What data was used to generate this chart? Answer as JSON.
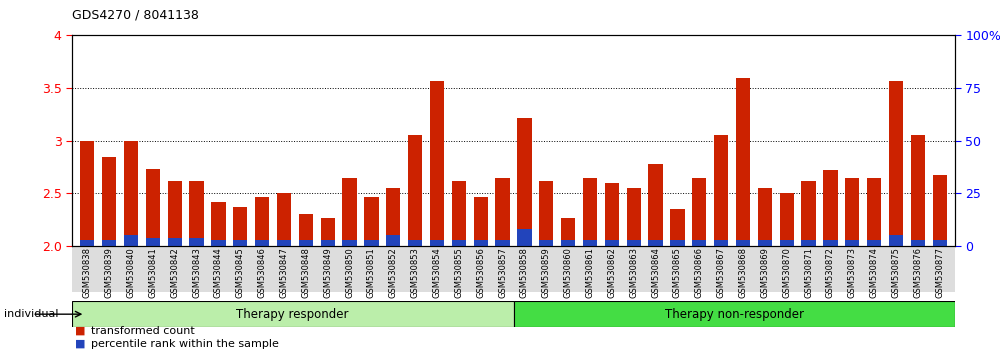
{
  "title": "GDS4270 / 8041138",
  "samples": [
    "GSM530838",
    "GSM530839",
    "GSM530840",
    "GSM530841",
    "GSM530842",
    "GSM530843",
    "GSM530844",
    "GSM530845",
    "GSM530846",
    "GSM530847",
    "GSM530848",
    "GSM530849",
    "GSM530850",
    "GSM530851",
    "GSM530852",
    "GSM530853",
    "GSM530854",
    "GSM530855",
    "GSM530856",
    "GSM530857",
    "GSM530858",
    "GSM530859",
    "GSM530860",
    "GSM530861",
    "GSM530862",
    "GSM530863",
    "GSM530864",
    "GSM530865",
    "GSM530866",
    "GSM530867",
    "GSM530868",
    "GSM530869",
    "GSM530870",
    "GSM530871",
    "GSM530872",
    "GSM530873",
    "GSM530874",
    "GSM530875",
    "GSM530876",
    "GSM530877"
  ],
  "red_values": [
    3.0,
    2.85,
    3.0,
    2.73,
    2.62,
    2.62,
    2.42,
    2.37,
    2.47,
    2.5,
    2.3,
    2.27,
    2.65,
    2.47,
    2.55,
    3.05,
    3.57,
    2.62,
    2.47,
    2.65,
    3.22,
    2.62,
    2.27,
    2.65,
    2.6,
    2.55,
    2.78,
    2.35,
    2.65,
    3.05,
    3.6,
    2.55,
    2.5,
    2.62,
    2.72,
    2.65,
    2.65,
    3.57,
    3.05,
    2.67
  ],
  "blue_values": [
    3,
    3,
    5,
    4,
    4,
    4,
    3,
    3,
    3,
    3,
    3,
    3,
    3,
    3,
    5,
    3,
    3,
    3,
    3,
    3,
    8,
    3,
    3,
    3,
    3,
    3,
    3,
    3,
    3,
    3,
    3,
    3,
    3,
    3,
    3,
    3,
    3,
    5,
    3,
    3
  ],
  "group1_label": "Therapy responder",
  "group2_label": "Therapy non-responder",
  "group1_count": 20,
  "group2_count": 20,
  "individual_label": "individual",
  "legend_red": "transformed count",
  "legend_blue": "percentile rank within the sample",
  "ylim_left": [
    2.0,
    4.0
  ],
  "ylim_right": [
    0,
    100
  ],
  "yticks_left": [
    2.0,
    2.5,
    3.0,
    3.5,
    4.0
  ],
  "yticks_right": [
    0,
    25,
    50,
    75,
    100
  ],
  "right_tick_labels": [
    "0",
    "25",
    "50",
    "75",
    "100%"
  ],
  "bar_color_red": "#CC2200",
  "bar_color_blue": "#2244BB",
  "group1_color": "#BBEEAA",
  "group2_color": "#44DD44",
  "xticklabel_bg": "#DDDDDD"
}
